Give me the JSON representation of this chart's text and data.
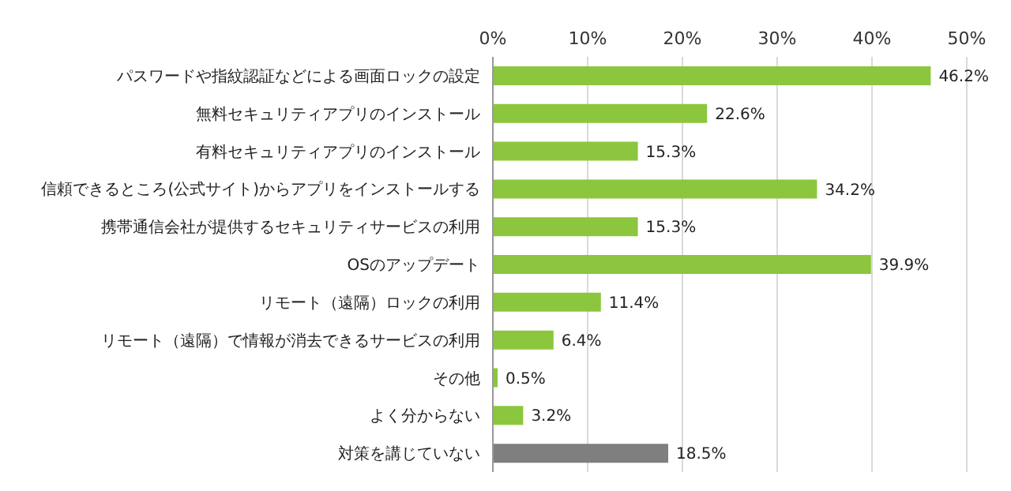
{
  "chart_data": {
    "type": "bar",
    "orientation": "horizontal",
    "categories": [
      "パスワードや指紋認証などによる画面ロックの設定",
      "無料セキュリティアプリのインストール",
      "有料セキュリティアプリのインストール",
      "信頼できるところ(公式サイト)からアプリをインストールする",
      "携帯通信会社が提供するセキュリティサービスの利用",
      "OSのアップデート",
      "リモート（遠隔）ロックの利用",
      "リモート（遠隔）で情報が消去できるサービスの利用",
      "その他",
      "よく分からない",
      "対策を講じていない"
    ],
    "values": [
      46.2,
      22.6,
      15.3,
      34.2,
      15.3,
      39.9,
      11.4,
      6.4,
      0.5,
      3.2,
      18.5
    ],
    "value_labels": [
      "46.2%",
      "22.6%",
      "15.3%",
      "34.2%",
      "15.3%",
      "39.9%",
      "11.4%",
      "6.4%",
      "0.5%",
      "3.2%",
      "18.5%"
    ],
    "colors": [
      "#8cc63e",
      "#8cc63e",
      "#8cc63e",
      "#8cc63e",
      "#8cc63e",
      "#8cc63e",
      "#8cc63e",
      "#8cc63e",
      "#8cc63e",
      "#8cc63e",
      "#7f7f7f"
    ],
    "xlim": [
      0,
      50
    ],
    "xticks": [
      {
        "value": 0,
        "label": "0%"
      },
      {
        "value": 10,
        "label": "10%"
      },
      {
        "value": 20,
        "label": "20%"
      },
      {
        "value": 30,
        "label": "30%"
      },
      {
        "value": 40,
        "label": "40%"
      },
      {
        "value": 50,
        "label": "50%"
      }
    ],
    "grid": "x"
  }
}
